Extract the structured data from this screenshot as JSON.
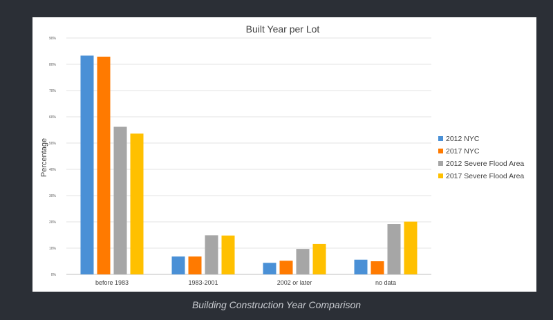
{
  "caption": "Building Construction Year Comparison",
  "chart_data": {
    "type": "bar",
    "title": "Built Year per Lot",
    "xlabel": "",
    "ylabel": "Percentage",
    "categories": [
      "before 1983",
      "1983-2001",
      "2002 or later",
      "no data"
    ],
    "ylim": [
      0,
      90
    ],
    "ytick_labels": [
      "0%",
      "10%",
      "20%",
      "30%",
      "40%",
      "50%",
      "60%",
      "70%",
      "80%",
      "90%"
    ],
    "grid": true,
    "legend_position": "right",
    "series": [
      {
        "name": "2012 NYC",
        "color": "#4a90d6",
        "values": [
          83.3,
          6.8,
          4.4,
          5.6
        ]
      },
      {
        "name": "2017 NYC",
        "color": "#ff7a00",
        "values": [
          82.9,
          6.8,
          5.2,
          5.0
        ]
      },
      {
        "name": "2012 Severe Flood Area",
        "color": "#a6a6a6",
        "values": [
          56.2,
          14.9,
          9.7,
          19.2
        ]
      },
      {
        "name": "2017 Severe Flood Area",
        "color": "#ffc000",
        "values": [
          53.6,
          14.8,
          11.6,
          20.1
        ]
      }
    ]
  }
}
